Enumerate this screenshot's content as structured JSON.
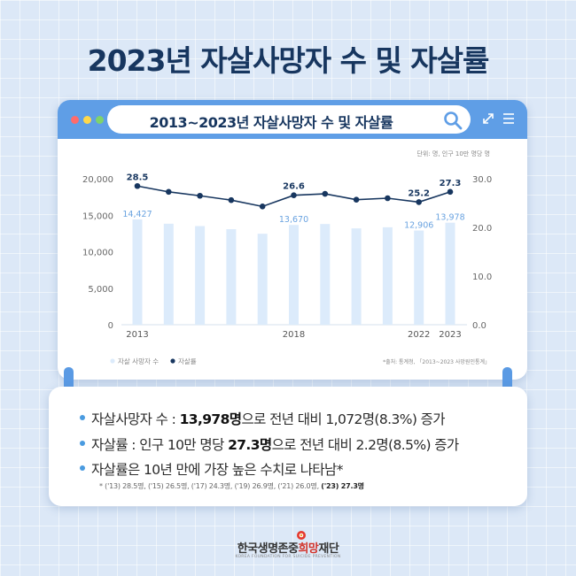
{
  "page": {
    "title": "2023년 자살사망자 수 및 자살률"
  },
  "window": {
    "search_text": "2013~2023년 자살사망자 수 및 자살률",
    "icons": [
      "search-icon",
      "expand-icon",
      "menu-icon"
    ]
  },
  "chart_data": {
    "type": "bar",
    "categories": [
      "2013",
      "2014",
      "2015",
      "2016",
      "2017",
      "2018",
      "2019",
      "2020",
      "2021",
      "2022",
      "2023"
    ],
    "x_tick_labels": [
      "2013",
      "2018",
      "2022",
      "2023"
    ],
    "unit_note": "단위: 명, 인구 10만 명당 명",
    "source_note": "*출처: 통계청, 「2013~2023 사망원인통계」",
    "series": [
      {
        "name": "자살 사망자 수",
        "type": "bar",
        "axis": "left",
        "color": "#dcebfb",
        "values": [
          14427,
          13836,
          13513,
          13092,
          12463,
          13670,
          13799,
          13195,
          13352,
          12906,
          13978
        ]
      },
      {
        "name": "자살률",
        "type": "line",
        "axis": "right",
        "color": "#17365f",
        "values": [
          28.5,
          27.3,
          26.5,
          25.6,
          24.3,
          26.6,
          26.9,
          25.7,
          26.0,
          25.2,
          27.3
        ]
      }
    ],
    "bar_labels": [
      {
        "index": 0,
        "text": "14,427"
      },
      {
        "index": 5,
        "text": "13,670"
      },
      {
        "index": 9,
        "text": "12,906"
      },
      {
        "index": 10,
        "text": "13,978"
      }
    ],
    "line_labels": [
      {
        "index": 0,
        "text": "28.5"
      },
      {
        "index": 5,
        "text": "26.6"
      },
      {
        "index": 9,
        "text": "25.2"
      },
      {
        "index": 10,
        "text": "27.3"
      }
    ],
    "y_left_ticks": [
      "0",
      "5,000",
      "10,000",
      "15,000",
      "20,000"
    ],
    "y_right_ticks": [
      "0.0",
      "10.0",
      "20.0",
      "30.0"
    ],
    "ylim_left": [
      0,
      20000
    ],
    "ylim_right": [
      0,
      30
    ],
    "legend_placement": "bottom-left",
    "grid": false
  },
  "summary": {
    "line1": {
      "prefix": "자살사망자 수 : ",
      "bold": "13,978명",
      "suffix": "으로 전년 대비 1,072명(8.3%) 증가"
    },
    "line2": {
      "prefix": "자살률 : 인구 10만 명당 ",
      "bold": "27.3명",
      "suffix": "으로 전년 대비 2.2명(8.5%) 증가"
    },
    "line3": {
      "text": "자살률은 10년 만에 가장 높은 수치로 나타남*"
    },
    "footnote": {
      "text": "* ('13) 28.5명, ('15) 26.5명, ('17) 24.3명, ('19) 26.9명, ('21) 26.0명, ",
      "bold": "('23) 27.3명"
    }
  },
  "logo": {
    "name_a": "한국생명존중",
    "name_b": "희망",
    "name_c": "재단",
    "sub": "KOREA FOUNDATION FOR SUICIDE PREVENTION"
  },
  "colors": {
    "background": "#dce8f7",
    "header": "#5f9ee6",
    "title": "#17365f",
    "bar": "#dcebfb",
    "line": "#17365f",
    "bullet": "#4a9be0",
    "accent": "#d2332a"
  }
}
